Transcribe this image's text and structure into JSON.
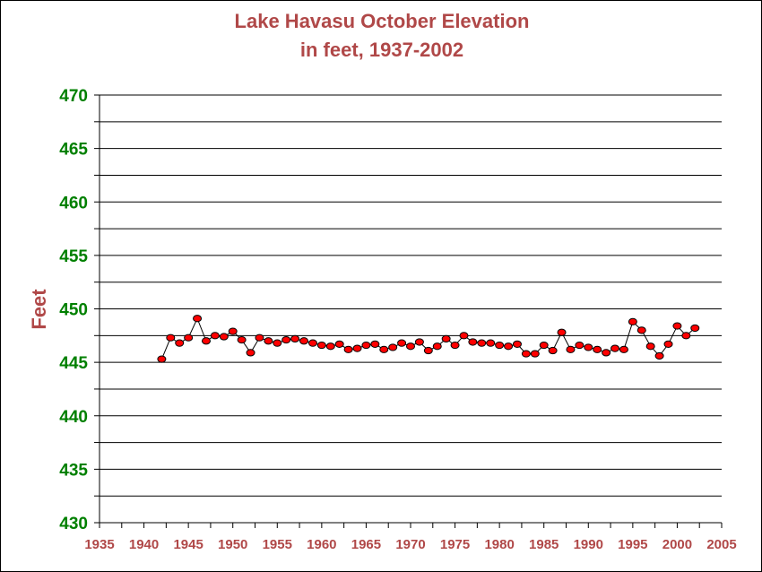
{
  "chart_data": {
    "type": "line",
    "title": "Lake Havasu October Elevation",
    "subtitle": "in feet, 1937-2002",
    "xlabel": "",
    "ylabel": "Feet",
    "xlim": [
      1935,
      2005
    ],
    "ylim": [
      430,
      470
    ],
    "x_ticks": [
      "1935",
      "1940",
      "1945",
      "1950",
      "1955",
      "1960",
      "1965",
      "1970",
      "1975",
      "1980",
      "1985",
      "1990",
      "1995",
      "2000",
      "2005"
    ],
    "y_ticks": [
      "430",
      "435",
      "440",
      "445",
      "450",
      "455",
      "460",
      "465",
      "470"
    ],
    "grid": true,
    "legend": "none",
    "colors": {
      "title": "#b04848",
      "y_tick_labels": "#008000",
      "x_tick_labels": "#b04848",
      "marker_fill": "#ff0000",
      "line": "#000000"
    },
    "series": [
      {
        "x": [
          1942,
          1943,
          1944,
          1945,
          1946,
          1947,
          1948,
          1949,
          1950,
          1951,
          1952,
          1953,
          1954,
          1955,
          1956,
          1957,
          1958,
          1959,
          1960,
          1961,
          1962,
          1963,
          1964,
          1965,
          1966,
          1967,
          1968,
          1969,
          1970,
          1971,
          1972,
          1973,
          1974,
          1975,
          1976,
          1977,
          1978,
          1979,
          1980,
          1981,
          1982,
          1983,
          1984,
          1985,
          1986,
          1987,
          1988,
          1989,
          1990,
          1991,
          1992,
          1993,
          1994,
          1995,
          1996,
          1997,
          1998,
          1999,
          2000,
          2001,
          2002
        ],
        "y": [
          445.3,
          447.3,
          446.8,
          447.3,
          449.1,
          447.0,
          447.5,
          447.4,
          447.9,
          447.1,
          445.9,
          447.3,
          447.0,
          446.8,
          447.1,
          447.2,
          447.0,
          446.8,
          446.6,
          446.5,
          446.7,
          446.2,
          446.3,
          446.6,
          446.7,
          446.2,
          446.4,
          446.8,
          446.5,
          446.9,
          446.1,
          446.5,
          447.2,
          446.6,
          447.5,
          446.9,
          446.8,
          446.8,
          446.6,
          446.5,
          446.7,
          445.8,
          445.8,
          446.6,
          446.1,
          447.8,
          446.2,
          446.6,
          446.4,
          446.2,
          445.9,
          446.3,
          446.2,
          448.8,
          448.0,
          446.5,
          445.6,
          446.7,
          448.4,
          447.5,
          448.2
        ]
      }
    ]
  }
}
